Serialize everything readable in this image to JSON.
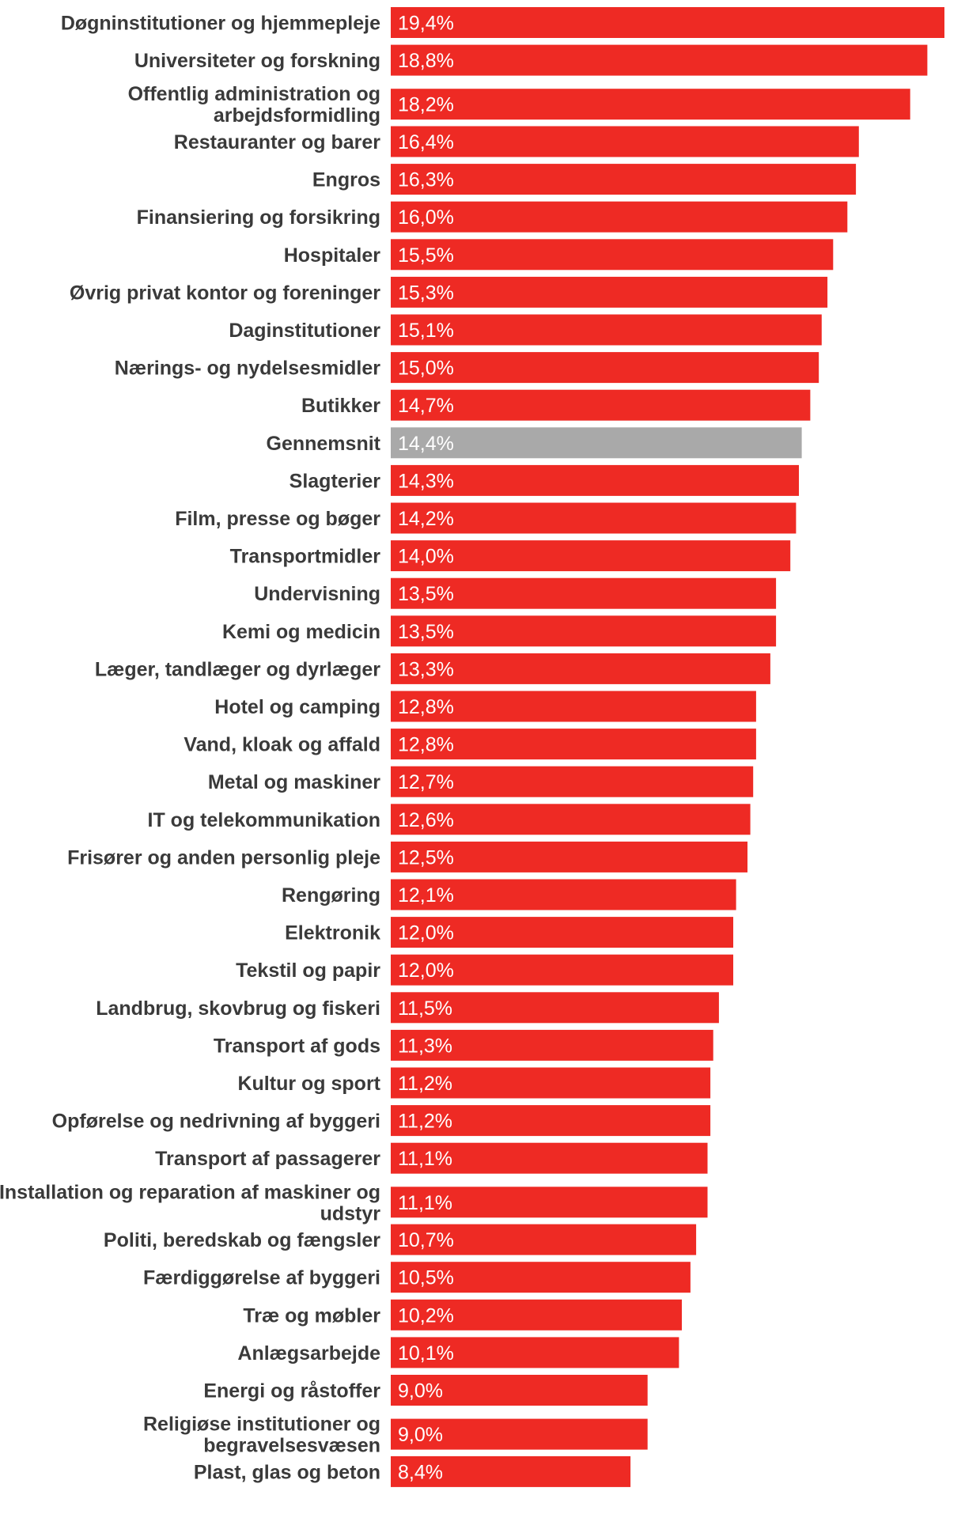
{
  "chart_data": {
    "type": "bar",
    "orientation": "horizontal",
    "title": "",
    "xlabel": "",
    "ylabel": "",
    "xlim": [
      0,
      19.4
    ],
    "grid": false,
    "legend": "none",
    "value_format": "percent-comma-1",
    "bar_color": "#ee2a24",
    "highlight_color": "#a9a9a9",
    "highlight_category": "Gennemsnit",
    "categories": [
      "Døgninstitutioner og hjemmepleje",
      "Universiteter og forskning",
      "Offentlig administration og arbejdsformidling",
      "Restauranter og barer",
      "Engros",
      "Finansiering og forsikring",
      "Hospitaler",
      "Øvrig privat kontor og foreninger",
      "Daginstitutioner",
      "Nærings- og nydelsesmidler",
      "Butikker",
      "Gennemsnit",
      "Slagterier",
      "Film, presse og bøger",
      "Transportmidler",
      "Undervisning",
      "Kemi og medicin",
      "Læger, tandlæger og dyrlæger",
      "Hotel og camping",
      "Vand, kloak og affald",
      "Metal og maskiner",
      "IT og telekommunikation",
      "Frisører og anden personlig pleje",
      "Rengøring",
      "Elektronik",
      "Tekstil og papir",
      "Landbrug, skovbrug og fiskeri",
      "Transport af gods",
      "Kultur og sport",
      "Opførelse og nedrivning af byggeri",
      "Transport af passagerer",
      "Installation og reparation af maskiner og udstyr",
      "Politi, beredskab og fængsler",
      "Færdiggørelse af byggeri",
      "Træ og møbler",
      "Anlægsarbejde",
      "Energi og råstoffer",
      "Religiøse institutioner og begravelsesvæsen",
      "Plast, glas og beton"
    ],
    "label_lines": [
      [
        "Døgninstitutioner og hjemmepleje"
      ],
      [
        "Universiteter og forskning"
      ],
      [
        "Offentlig administration og",
        "arbejdsformidling"
      ],
      [
        "Restauranter og barer"
      ],
      [
        "Engros"
      ],
      [
        "Finansiering og forsikring"
      ],
      [
        "Hospitaler"
      ],
      [
        "Øvrig privat kontor og foreninger"
      ],
      [
        "Daginstitutioner"
      ],
      [
        "Nærings- og nydelsesmidler"
      ],
      [
        "Butikker"
      ],
      [
        "Gennemsnit"
      ],
      [
        "Slagterier"
      ],
      [
        "Film, presse og bøger"
      ],
      [
        "Transportmidler"
      ],
      [
        "Undervisning"
      ],
      [
        "Kemi og medicin"
      ],
      [
        "Læger, tandlæger og dyrlæger"
      ],
      [
        "Hotel og camping"
      ],
      [
        "Vand, kloak og affald"
      ],
      [
        "Metal og maskiner"
      ],
      [
        "IT og telekommunikation"
      ],
      [
        "Frisører og anden personlig pleje"
      ],
      [
        "Rengøring"
      ],
      [
        "Elektronik"
      ],
      [
        "Tekstil og papir"
      ],
      [
        "Landbrug, skovbrug og fiskeri"
      ],
      [
        "Transport af gods"
      ],
      [
        "Kultur og sport"
      ],
      [
        "Opførelse og nedrivning af byggeri"
      ],
      [
        "Transport af passagerer"
      ],
      [
        "Installation og reparation af maskiner og",
        "udstyr"
      ],
      [
        "Politi, beredskab og fængsler"
      ],
      [
        "Færdiggørelse af byggeri"
      ],
      [
        "Træ og møbler"
      ],
      [
        "Anlægsarbejde"
      ],
      [
        "Energi og råstoffer"
      ],
      [
        "Religiøse institutioner og",
        "begravelsesvæsen"
      ],
      [
        "Plast, glas og beton"
      ]
    ],
    "values": [
      19.4,
      18.8,
      18.2,
      16.4,
      16.3,
      16.0,
      15.5,
      15.3,
      15.1,
      15.0,
      14.7,
      14.4,
      14.3,
      14.2,
      14.0,
      13.5,
      13.5,
      13.3,
      12.8,
      12.8,
      12.7,
      12.6,
      12.5,
      12.1,
      12.0,
      12.0,
      11.5,
      11.3,
      11.2,
      11.2,
      11.1,
      11.1,
      10.7,
      10.5,
      10.2,
      10.1,
      9.0,
      9.0,
      8.4
    ],
    "value_labels": [
      "19,4%",
      "18,8%",
      "18,2%",
      "16,4%",
      "16,3%",
      "16,0%",
      "15,5%",
      "15,3%",
      "15,1%",
      "15,0%",
      "14,7%",
      "14,4%",
      "14,3%",
      "14,2%",
      "14,0%",
      "13,5%",
      "13,5%",
      "13,3%",
      "12,8%",
      "12,8%",
      "12,7%",
      "12,6%",
      "12,5%",
      "12,1%",
      "12,0%",
      "12,0%",
      "11,5%",
      "11,3%",
      "11,2%",
      "11,2%",
      "11,1%",
      "11,1%",
      "10,7%",
      "10,5%",
      "10,2%",
      "10,1%",
      "9,0%",
      "9,0%",
      "8,4%"
    ]
  }
}
